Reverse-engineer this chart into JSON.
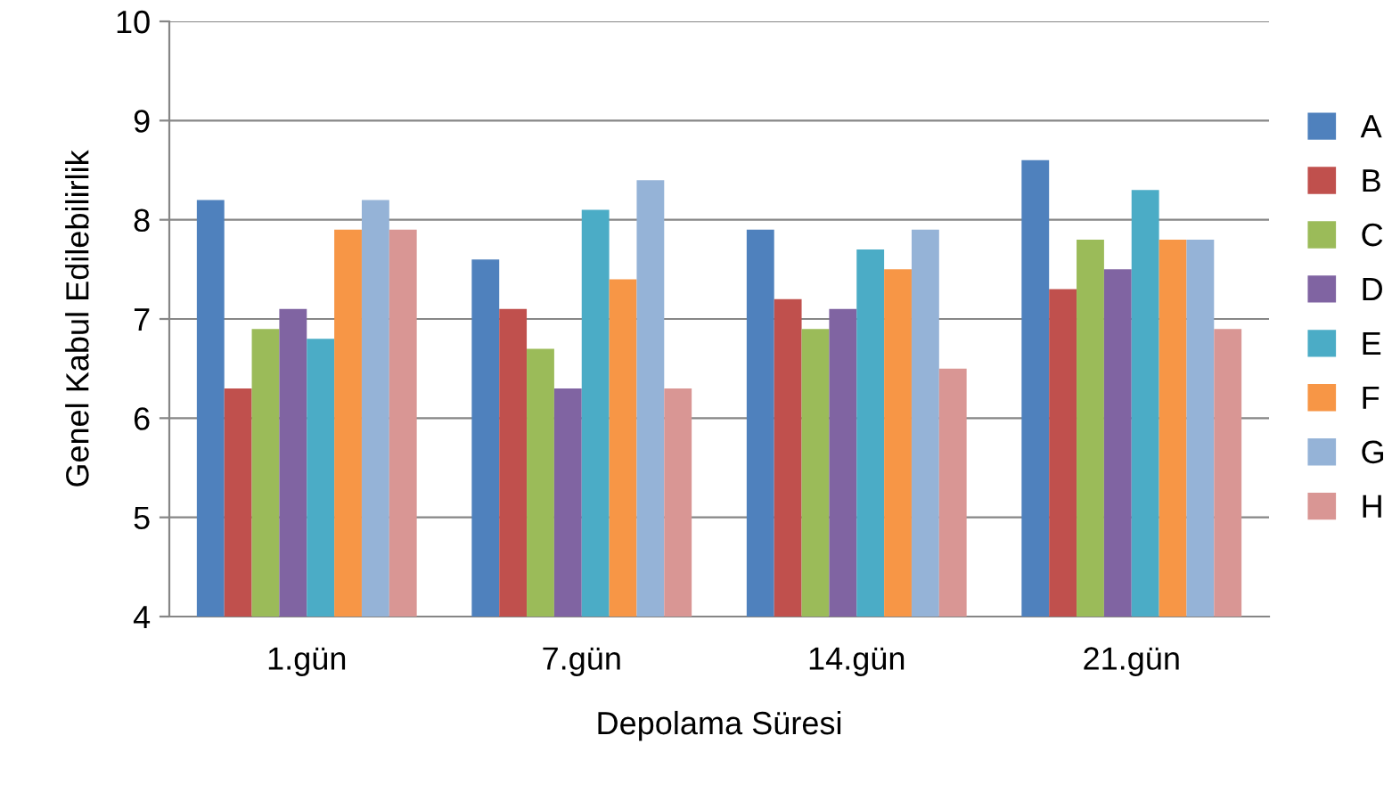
{
  "chart_data": {
    "type": "bar",
    "xlabel": "Depolama Süresi",
    "ylabel": "Genel Kabul Edilebilirlik",
    "categories": [
      "1.gün",
      "7.gün",
      "14.gün",
      "21.gün"
    ],
    "series": [
      {
        "name": "A",
        "color": "#4f81bd",
        "values": [
          8.2,
          7.6,
          7.9,
          8.6
        ]
      },
      {
        "name": "B",
        "color": "#c0504d",
        "values": [
          6.3,
          7.1,
          7.2,
          7.3
        ]
      },
      {
        "name": "C",
        "color": "#9bbb59",
        "values": [
          6.9,
          6.7,
          6.9,
          7.8
        ]
      },
      {
        "name": "D",
        "color": "#8064a2",
        "values": [
          7.1,
          6.3,
          7.1,
          7.5
        ]
      },
      {
        "name": "E",
        "color": "#4bacc6",
        "values": [
          6.8,
          8.1,
          7.7,
          8.3
        ]
      },
      {
        "name": "F",
        "color": "#f79646",
        "values": [
          7.9,
          7.4,
          7.5,
          7.8
        ]
      },
      {
        "name": "G",
        "color": "#95b3d7",
        "values": [
          8.2,
          8.4,
          7.9,
          7.8
        ]
      },
      {
        "name": "H",
        "color": "#d99694",
        "values": [
          7.9,
          6.3,
          6.5,
          6.9
        ]
      }
    ],
    "ylim": [
      4,
      10
    ],
    "yticks": [
      4,
      5,
      6,
      7,
      8,
      9,
      10
    ],
    "grid": "y",
    "legend": "right"
  }
}
